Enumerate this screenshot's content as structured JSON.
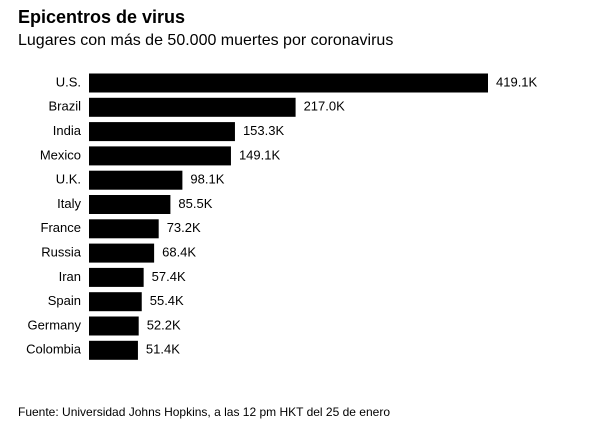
{
  "chart_data": {
    "type": "bar",
    "orientation": "horizontal",
    "title": "Epicentros de virus",
    "subtitle": "Lugares con más de 50.000 muertes por coronavirus",
    "source": "Fuente: Universidad Johns Hopkins, a las 12 pm HKT del 25 de enero",
    "categories": [
      "U.S.",
      "Brazil",
      "India",
      "Mexico",
      "U.K.",
      "Italy",
      "France",
      "Russia",
      "Iran",
      "Spain",
      "Germany",
      "Colombia"
    ],
    "values": [
      419.1,
      217.0,
      153.3,
      149.1,
      98.1,
      85.5,
      73.2,
      68.4,
      57.4,
      55.4,
      52.2,
      51.4
    ],
    "value_labels": [
      "419.1K",
      "217.0K",
      "153.3K",
      "149.1K",
      "98.1K",
      "85.5K",
      "73.2K",
      "68.4K",
      "57.4K",
      "55.4K",
      "52.2K",
      "51.4K"
    ],
    "color": "#000000"
  }
}
